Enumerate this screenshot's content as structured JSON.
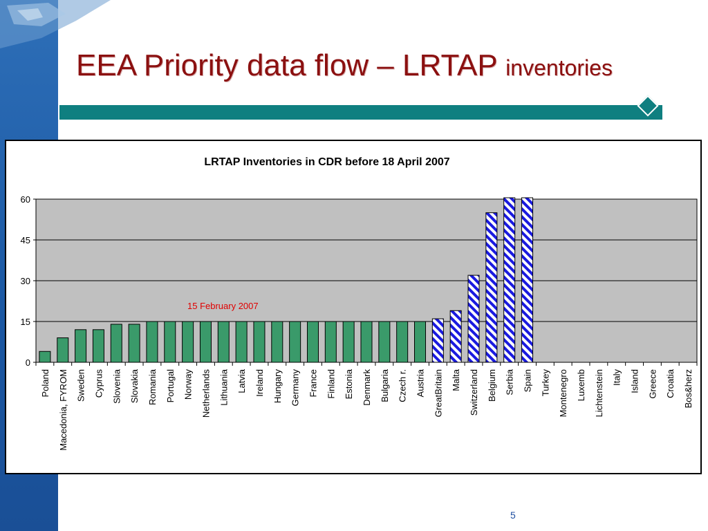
{
  "slide": {
    "title_main": "EEA Priority data flow – LRTAP ",
    "title_sub": "inventories",
    "page_number": "5"
  },
  "colors": {
    "title": "#8b1010",
    "teal_bar": "#0f7f80",
    "side_band": "#1f5da8",
    "bar_green": "#3a9a6a",
    "bar_blue_stripe": "#1a1ae0",
    "plot_bg": "#c0c0c0",
    "annotation": "#e00000"
  },
  "chart_data": {
    "type": "bar",
    "title": "LRTAP Inventories  in CDR before 18 April 2007",
    "annotation": "15 February 2007",
    "ylim": [
      0,
      60
    ],
    "yticks": [
      0,
      15,
      30,
      45,
      60
    ],
    "grid": true,
    "categories": [
      "Poland",
      "Macedonia, FYROM",
      "Sweden",
      "Cyprus",
      "Slovenia",
      "Slovakia",
      "Romania",
      "Portugal",
      "Norway",
      "Netherlands",
      "Lithuania",
      "Latvia",
      "Ireland",
      "Hungary",
      "Germany",
      "France",
      "Finland",
      "Estonia",
      "Denmark",
      "Bulgaria",
      "Czech r.",
      "Austria",
      "GreatBritain",
      "Malta",
      "Switzerland",
      "Belgium",
      "Serbia",
      "Spain",
      "Turkey",
      "Montenegro",
      "Luxemb",
      "Lichtenstein",
      "Italy",
      "Island",
      "Greece",
      "Croatia",
      "Bos&herz"
    ],
    "values": [
      4,
      9,
      12,
      12,
      14,
      14,
      15,
      15,
      15,
      15,
      15,
      15,
      15,
      15,
      15,
      15,
      15,
      15,
      15,
      15,
      15,
      15,
      16,
      19,
      32,
      55,
      61,
      61,
      0,
      0,
      0,
      0,
      0,
      0,
      0,
      0,
      0
    ],
    "style": [
      "solid",
      "solid",
      "solid",
      "solid",
      "solid",
      "solid",
      "solid",
      "solid",
      "solid",
      "solid",
      "solid",
      "solid",
      "solid",
      "solid",
      "solid",
      "solid",
      "solid",
      "solid",
      "solid",
      "solid",
      "solid",
      "solid",
      "striped",
      "striped",
      "striped",
      "striped",
      "striped",
      "striped",
      "none",
      "none",
      "none",
      "none",
      "none",
      "none",
      "none",
      "none",
      "none"
    ]
  }
}
